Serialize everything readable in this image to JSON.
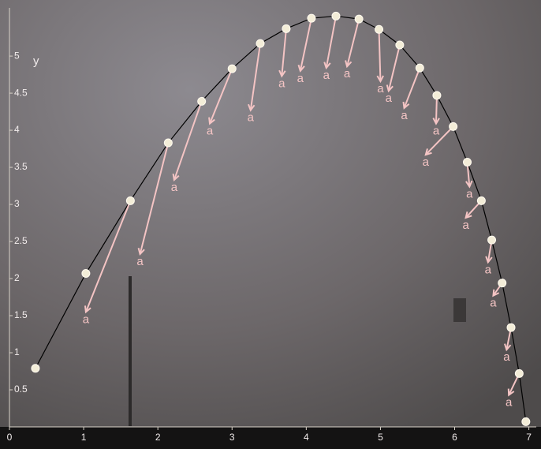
{
  "chart_data": {
    "type": "trajectory",
    "y_label": "y",
    "arrow_label": "a",
    "x": [
      0.35,
      1.03,
      1.63,
      2.14,
      2.59,
      3.0,
      3.38,
      3.73,
      4.07,
      4.4,
      4.71,
      4.98,
      5.26,
      5.53,
      5.76,
      5.98,
      6.17,
      6.36,
      6.5,
      6.64,
      6.76,
      6.87,
      6.96
    ],
    "y": [
      0.79,
      2.07,
      3.05,
      3.83,
      4.39,
      4.83,
      5.17,
      5.37,
      5.51,
      5.54,
      5.5,
      5.36,
      5.15,
      4.84,
      4.47,
      4.05,
      3.57,
      3.05,
      2.52,
      1.94,
      1.34,
      0.72,
      0.07
    ],
    "ax": [
      null,
      null,
      -0.6,
      -0.38,
      -0.37,
      -0.3,
      -0.13,
      -0.06,
      -0.15,
      -0.13,
      -0.16,
      0.02,
      -0.15,
      -0.21,
      -0.01,
      -0.37,
      0.03,
      -0.21,
      -0.05,
      -0.12,
      -0.06,
      -0.14,
      null
    ],
    "ay": [
      null,
      null,
      -1.5,
      -1.5,
      -1.06,
      -0.74,
      -0.9,
      -0.64,
      -0.71,
      -0.7,
      -0.64,
      -0.7,
      -0.62,
      -0.54,
      -0.38,
      -0.38,
      -0.33,
      -0.23,
      -0.3,
      -0.17,
      -0.3,
      -0.29,
      null
    ],
    "line_color": "#000000",
    "arrow_color": "#f4c4c4",
    "point_color": "#f3edd8",
    "xlim": [
      0,
      7.1
    ],
    "ylim": [
      0,
      5.65
    ],
    "xticks": [
      0,
      1,
      2,
      3,
      4,
      5,
      6,
      7
    ],
    "yticks": [
      0.5,
      1,
      1.5,
      2,
      2.5,
      3,
      3.5,
      4,
      4.5,
      5
    ]
  }
}
